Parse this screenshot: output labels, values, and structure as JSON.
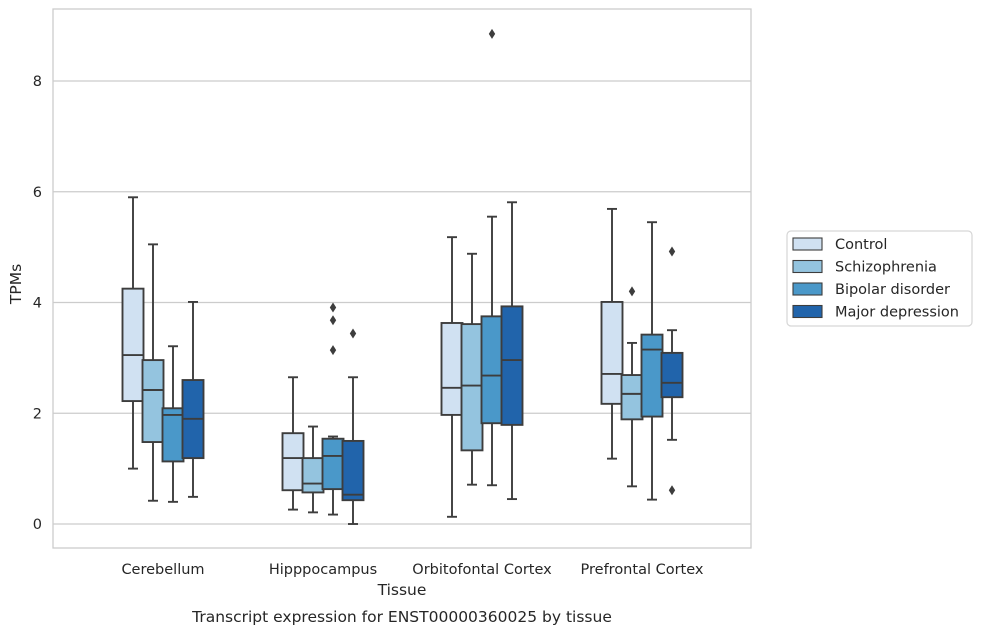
{
  "caption": "Transcript expression for ENST00000360025 by tissue",
  "chart_data": {
    "type": "boxplot",
    "xlabel": "Tissue",
    "ylabel": "TPMs",
    "ylim": [
      -0.42,
      9.3
    ],
    "yticks": [
      0,
      2,
      4,
      6,
      8
    ],
    "grid": "horizontal",
    "legend_position": "right",
    "categories": [
      "Cerebellum",
      "Hipppocampus",
      "Orbitofontal Cortex",
      "Prefrontal Cortex"
    ],
    "series": [
      {
        "name": "Control",
        "color": "#d0e1f2",
        "boxes": [
          {
            "whislo": 1.0,
            "q1": 2.22,
            "med": 3.05,
            "q3": 4.25,
            "whishi": 5.9,
            "fliers": []
          },
          {
            "whislo": 0.26,
            "q1": 0.61,
            "med": 1.19,
            "q3": 1.64,
            "whishi": 2.65,
            "fliers": []
          },
          {
            "whislo": 0.13,
            "q1": 1.97,
            "med": 2.46,
            "q3": 3.63,
            "whishi": 5.18,
            "fliers": []
          },
          {
            "whislo": 1.18,
            "q1": 2.17,
            "med": 2.71,
            "q3": 4.01,
            "whishi": 5.69,
            "fliers": []
          }
        ]
      },
      {
        "name": "Schizophrenia",
        "color": "#94c4df",
        "boxes": [
          {
            "whislo": 0.42,
            "q1": 1.48,
            "med": 2.42,
            "q3": 2.96,
            "whishi": 5.05,
            "fliers": []
          },
          {
            "whislo": 0.21,
            "q1": 0.57,
            "med": 0.73,
            "q3": 1.19,
            "whishi": 1.76,
            "fliers": []
          },
          {
            "whislo": 0.71,
            "q1": 1.33,
            "med": 2.5,
            "q3": 3.61,
            "whishi": 4.88,
            "fliers": []
          },
          {
            "whislo": 0.68,
            "q1": 1.89,
            "med": 2.35,
            "q3": 2.69,
            "whishi": 3.27,
            "fliers": [
              4.2
            ]
          }
        ]
      },
      {
        "name": "Bipolar disorder",
        "color": "#4a98c9",
        "boxes": [
          {
            "whislo": 0.4,
            "q1": 1.13,
            "med": 1.97,
            "q3": 2.09,
            "whishi": 3.21,
            "fliers": []
          },
          {
            "whislo": 0.17,
            "q1": 0.63,
            "med": 1.23,
            "q3": 1.54,
            "whishi": 1.58,
            "fliers": [
              3.14,
              3.68,
              3.91
            ]
          },
          {
            "whislo": 0.7,
            "q1": 1.82,
            "med": 2.68,
            "q3": 3.75,
            "whishi": 5.55,
            "fliers": [
              8.85
            ]
          },
          {
            "whislo": 0.44,
            "q1": 1.94,
            "med": 3.15,
            "q3": 3.42,
            "whishi": 5.45,
            "fliers": []
          }
        ]
      },
      {
        "name": "Major depression",
        "color": "#2164ab",
        "boxes": [
          {
            "whislo": 0.49,
            "q1": 1.19,
            "med": 1.9,
            "q3": 2.6,
            "whishi": 4.01,
            "fliers": []
          },
          {
            "whislo": 0.0,
            "q1": 0.43,
            "med": 0.53,
            "q3": 1.5,
            "whishi": 2.65,
            "fliers": [
              3.44
            ]
          },
          {
            "whislo": 0.45,
            "q1": 1.79,
            "med": 2.96,
            "q3": 3.93,
            "whishi": 5.81,
            "fliers": []
          },
          {
            "whislo": 1.52,
            "q1": 2.29,
            "med": 2.55,
            "q3": 3.09,
            "whishi": 3.5,
            "fliers": [
              0.61,
              4.92
            ]
          }
        ]
      }
    ]
  }
}
